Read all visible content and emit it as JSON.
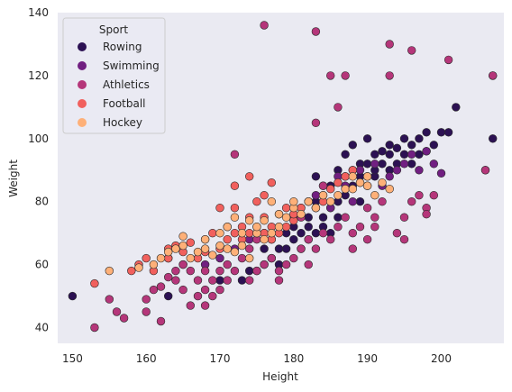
{
  "chart_data": {
    "type": "scatter",
    "title": "",
    "xlabel": "Height",
    "ylabel": "Weight",
    "xlim": [
      148,
      208.5
    ],
    "ylim": [
      35,
      140
    ],
    "x_ticks": [
      150,
      160,
      170,
      180,
      190,
      200
    ],
    "y_ticks": [
      40,
      60,
      80,
      100,
      120,
      140
    ],
    "grid": false,
    "background": "#eaeaf2",
    "legend": {
      "title": "Sport",
      "placement": "top-left",
      "entries": [
        "Rowing",
        "Swimming",
        "Athletics",
        "Football",
        "Hockey"
      ]
    },
    "series": [
      {
        "name": "Rowing",
        "color": "#2c1153",
        "points": [
          [
            150,
            50
          ],
          [
            163,
            50
          ],
          [
            170,
            55
          ],
          [
            173,
            55
          ],
          [
            174,
            58
          ],
          [
            175,
            58
          ],
          [
            176,
            60
          ],
          [
            176,
            65
          ],
          [
            177,
            62
          ],
          [
            177,
            68
          ],
          [
            178,
            65
          ],
          [
            178,
            60
          ],
          [
            179,
            70
          ],
          [
            179,
            65
          ],
          [
            180,
            68
          ],
          [
            180,
            72
          ],
          [
            180,
            75
          ],
          [
            181,
            70
          ],
          [
            181,
            65
          ],
          [
            182,
            72
          ],
          [
            182,
            68
          ],
          [
            182,
            75
          ],
          [
            183,
            70
          ],
          [
            183,
            78
          ],
          [
            183,
            80
          ],
          [
            183,
            88
          ],
          [
            184,
            72
          ],
          [
            184,
            75
          ],
          [
            184,
            82
          ],
          [
            185,
            70
          ],
          [
            185,
            78
          ],
          [
            185,
            85
          ],
          [
            186,
            75
          ],
          [
            186,
            80
          ],
          [
            186,
            90
          ],
          [
            187,
            82
          ],
          [
            187,
            88
          ],
          [
            187,
            95
          ],
          [
            188,
            85
          ],
          [
            188,
            90
          ],
          [
            188,
            98
          ],
          [
            189,
            88
          ],
          [
            189,
            92
          ],
          [
            189,
            80
          ],
          [
            190,
            85
          ],
          [
            190,
            92
          ],
          [
            190,
            100
          ],
          [
            191,
            88
          ],
          [
            191,
            95
          ],
          [
            191,
            90
          ],
          [
            192,
            92
          ],
          [
            192,
            96
          ],
          [
            193,
            90
          ],
          [
            193,
            95
          ],
          [
            193,
            98
          ],
          [
            194,
            92
          ],
          [
            194,
            97
          ],
          [
            195,
            95
          ],
          [
            195,
            100
          ],
          [
            196,
            92
          ],
          [
            196,
            98
          ],
          [
            197,
            95
          ],
          [
            197,
            100
          ],
          [
            198,
            96
          ],
          [
            198,
            102
          ],
          [
            199,
            98
          ],
          [
            200,
            102
          ],
          [
            201,
            102
          ],
          [
            202,
            110
          ],
          [
            207,
            100
          ],
          [
            207,
            120
          ]
        ]
      },
      {
        "name": "Swimming",
        "color": "#711f81",
        "points": [
          [
            165,
            60
          ],
          [
            168,
            60
          ],
          [
            170,
            62
          ],
          [
            172,
            65
          ],
          [
            174,
            68
          ],
          [
            176,
            70
          ],
          [
            178,
            72
          ],
          [
            180,
            75
          ],
          [
            181,
            78
          ],
          [
            182,
            80
          ],
          [
            183,
            82
          ],
          [
            184,
            85
          ],
          [
            185,
            78
          ],
          [
            186,
            88
          ],
          [
            187,
            85
          ],
          [
            188,
            80
          ],
          [
            189,
            90
          ],
          [
            190,
            88
          ],
          [
            191,
            92
          ],
          [
            192,
            85
          ],
          [
            193,
            88
          ],
          [
            194,
            90
          ],
          [
            195,
            92
          ],
          [
            196,
            95
          ],
          [
            197,
            90
          ],
          [
            198,
            96
          ],
          [
            199,
            92
          ],
          [
            200,
            89
          ],
          [
            206,
            90
          ]
        ]
      },
      {
        "name": "Athletics",
        "color": "#b5367a",
        "points": [
          [
            153,
            40
          ],
          [
            155,
            49
          ],
          [
            156,
            45
          ],
          [
            157,
            43
          ],
          [
            160,
            45
          ],
          [
            160,
            49
          ],
          [
            161,
            52
          ],
          [
            162,
            42
          ],
          [
            162,
            53
          ],
          [
            163,
            56
          ],
          [
            163,
            62
          ],
          [
            164,
            55
          ],
          [
            164,
            58
          ],
          [
            165,
            52
          ],
          [
            165,
            60
          ],
          [
            166,
            47
          ],
          [
            166,
            58
          ],
          [
            167,
            50
          ],
          [
            167,
            55
          ],
          [
            168,
            47
          ],
          [
            168,
            52
          ],
          [
            168,
            58
          ],
          [
            169,
            50
          ],
          [
            169,
            55
          ],
          [
            170,
            52
          ],
          [
            170,
            58
          ],
          [
            171,
            55
          ],
          [
            171,
            60
          ],
          [
            172,
            58
          ],
          [
            172,
            95
          ],
          [
            173,
            62
          ],
          [
            174,
            55
          ],
          [
            174,
            65
          ],
          [
            175,
            58
          ],
          [
            175,
            68
          ],
          [
            176,
            136
          ],
          [
            176,
            60
          ],
          [
            177,
            62
          ],
          [
            178,
            55
          ],
          [
            178,
            58
          ],
          [
            179,
            60
          ],
          [
            180,
            62
          ],
          [
            181,
            65
          ],
          [
            181,
            75
          ],
          [
            182,
            68
          ],
          [
            182,
            60
          ],
          [
            183,
            65
          ],
          [
            183,
            105
          ],
          [
            183,
            134
          ],
          [
            184,
            70
          ],
          [
            184,
            85
          ],
          [
            185,
            120
          ],
          [
            185,
            68
          ],
          [
            186,
            110
          ],
          [
            186,
            72
          ],
          [
            187,
            120
          ],
          [
            187,
            75
          ],
          [
            188,
            65
          ],
          [
            188,
            70
          ],
          [
            189,
            72
          ],
          [
            190,
            68
          ],
          [
            190,
            78
          ],
          [
            191,
            72
          ],
          [
            191,
            75
          ],
          [
            192,
            80
          ],
          [
            193,
            120
          ],
          [
            193,
            130
          ],
          [
            194,
            70
          ],
          [
            195,
            68
          ],
          [
            195,
            75
          ],
          [
            196,
            128
          ],
          [
            196,
            80
          ],
          [
            197,
            82
          ],
          [
            198,
            78
          ],
          [
            198,
            76
          ],
          [
            199,
            82
          ],
          [
            201,
            125
          ],
          [
            206,
            90
          ],
          [
            207,
            120
          ]
        ]
      },
      {
        "name": "Football",
        "color": "#f1605d",
        "points": [
          [
            153,
            54
          ],
          [
            158,
            58
          ],
          [
            159,
            60
          ],
          [
            160,
            62
          ],
          [
            161,
            58
          ],
          [
            163,
            62
          ],
          [
            163,
            65
          ],
          [
            164,
            66
          ],
          [
            165,
            64
          ],
          [
            166,
            67
          ],
          [
            167,
            62
          ],
          [
            168,
            64
          ],
          [
            168,
            68
          ],
          [
            169,
            70
          ],
          [
            170,
            65
          ],
          [
            170,
            78
          ],
          [
            171,
            68
          ],
          [
            171,
            72
          ],
          [
            172,
            70
          ],
          [
            172,
            78
          ],
          [
            172,
            85
          ],
          [
            173,
            72
          ],
          [
            173,
            68
          ],
          [
            174,
            70
          ],
          [
            174,
            75
          ],
          [
            174,
            88
          ],
          [
            175,
            72
          ],
          [
            175,
            70
          ],
          [
            175,
            80
          ],
          [
            176,
            70
          ],
          [
            176,
            75
          ],
          [
            176,
            82
          ],
          [
            177,
            72
          ],
          [
            177,
            68
          ],
          [
            177,
            86
          ],
          [
            178,
            70
          ],
          [
            178,
            76
          ],
          [
            179,
            78
          ],
          [
            179,
            72
          ],
          [
            180,
            74
          ],
          [
            180,
            76
          ],
          [
            181,
            78
          ],
          [
            182,
            80
          ],
          [
            183,
            78
          ],
          [
            184,
            80
          ],
          [
            185,
            84
          ],
          [
            186,
            86
          ],
          [
            187,
            88
          ],
          [
            188,
            90
          ],
          [
            189,
            86
          ],
          [
            190,
            88
          ]
        ]
      },
      {
        "name": "Hockey",
        "color": "#feb078",
        "points": [
          [
            155,
            58
          ],
          [
            159,
            59
          ],
          [
            161,
            60
          ],
          [
            162,
            62
          ],
          [
            163,
            64
          ],
          [
            164,
            65
          ],
          [
            165,
            66
          ],
          [
            165,
            69
          ],
          [
            166,
            62
          ],
          [
            167,
            64
          ],
          [
            168,
            65
          ],
          [
            168,
            68
          ],
          [
            169,
            63
          ],
          [
            170,
            66
          ],
          [
            170,
            70
          ],
          [
            171,
            72
          ],
          [
            171,
            65
          ],
          [
            172,
            64
          ],
          [
            172,
            75
          ],
          [
            173,
            66
          ],
          [
            173,
            70
          ],
          [
            174,
            74
          ],
          [
            174,
            62
          ],
          [
            175,
            70
          ],
          [
            175,
            72
          ],
          [
            176,
            68
          ],
          [
            176,
            74
          ],
          [
            177,
            70
          ],
          [
            177,
            80
          ],
          [
            178,
            72
          ],
          [
            178,
            76
          ],
          [
            179,
            75
          ],
          [
            180,
            78
          ],
          [
            180,
            80
          ],
          [
            181,
            76
          ],
          [
            182,
            80
          ],
          [
            183,
            78
          ],
          [
            184,
            82
          ],
          [
            185,
            80
          ],
          [
            186,
            82
          ],
          [
            187,
            84
          ],
          [
            188,
            88
          ],
          [
            188,
            84
          ],
          [
            189,
            86
          ],
          [
            190,
            85
          ],
          [
            190,
            88
          ],
          [
            191,
            82
          ],
          [
            192,
            86
          ],
          [
            193,
            84
          ]
        ]
      }
    ]
  }
}
